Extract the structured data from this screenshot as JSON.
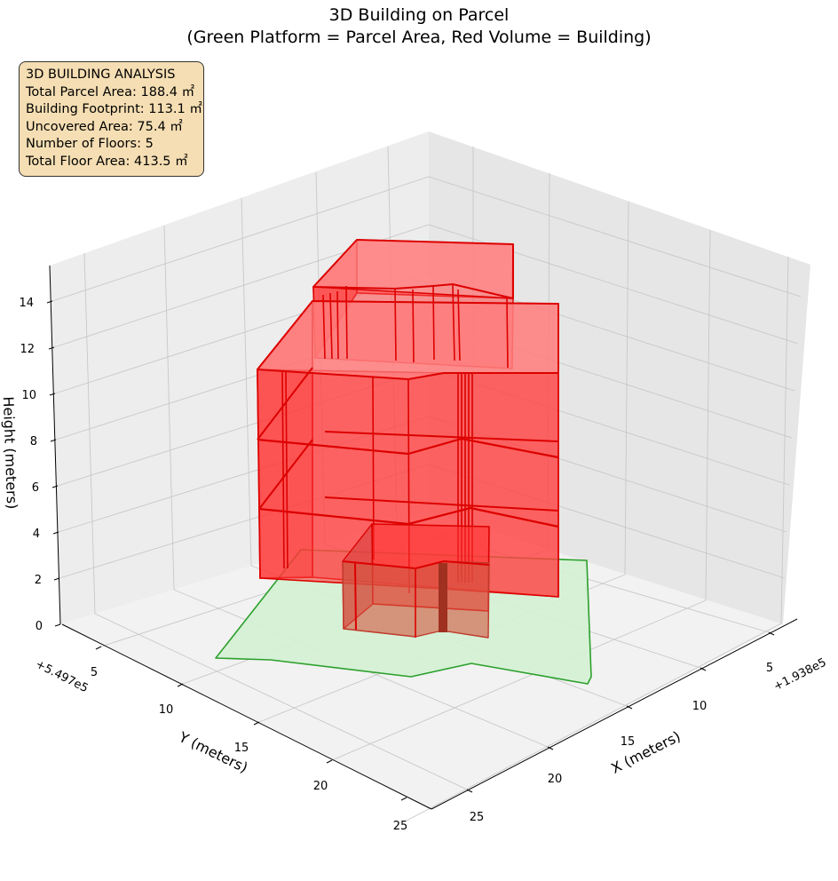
{
  "title_line1": "3D Building on Parcel",
  "title_line2": "(Green Platform = Parcel Area, Red Volume = Building)",
  "info_box": {
    "heading": "3D BUILDING ANALYSIS",
    "total_parcel_area": "Total Parcel Area: 188.4 ㎡",
    "building_footprint": "Building Footprint: 113.1 ㎡",
    "uncovered_area": "Uncovered Area: 75.4 ㎡",
    "number_of_floors": "Number of Floors: 5",
    "total_floor_area": "Total Floor Area: 413.5 ㎡"
  },
  "chart_data": {
    "type": "3d-polygons",
    "xlabel": "X (meters)",
    "ylabel": "Y (meters)",
    "zlabel": "Height (meters)",
    "x_offset_label": "+1.938e5",
    "y_offset_label": "+5.497e5",
    "x_ticks": [
      "5",
      "10",
      "15",
      "20",
      "25"
    ],
    "y_ticks": [
      "5",
      "10",
      "15",
      "20",
      "25"
    ],
    "z_ticks": [
      "0",
      "2",
      "4",
      "6",
      "8",
      "10",
      "12",
      "14"
    ],
    "zlim": [
      0,
      15
    ],
    "grid": true,
    "colors": {
      "parcel_fill": "#d4f0d4",
      "parcel_edge": "#2ca02c",
      "building_fill": "#ff0000",
      "building_edge": "#dd0000"
    },
    "series": [
      {
        "name": "Parcel",
        "area": 188.4,
        "z": 0
      },
      {
        "name": "Building",
        "footprint": 113.1,
        "floors": 5,
        "total_floor_area": 413.5
      }
    ]
  }
}
